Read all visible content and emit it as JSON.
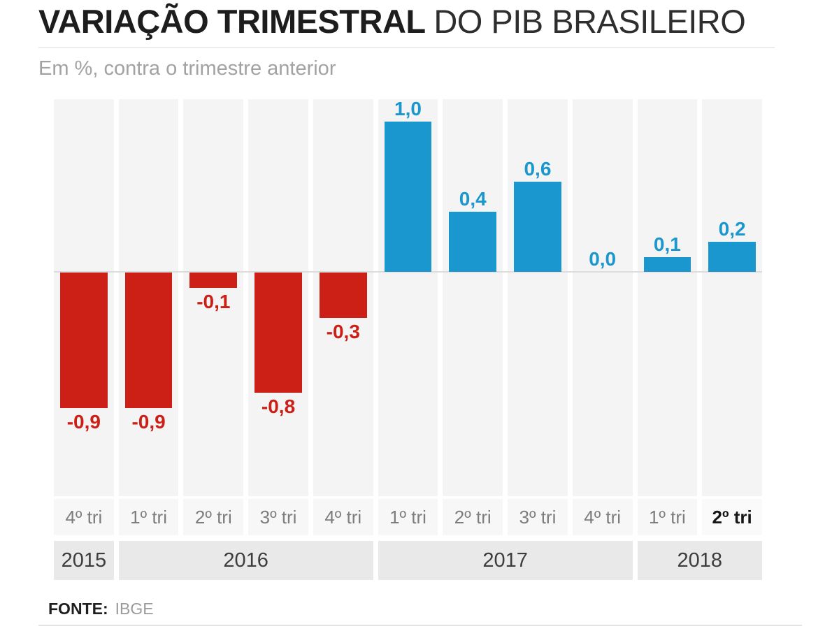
{
  "header": {
    "title_bold": "VARIAÇÃO TRIMESTRAL",
    "title_light": "DO PIB BRASILEIRO",
    "subtitle": "Em %, contra o trimestre anterior"
  },
  "chart_data": {
    "type": "bar",
    "title": "VARIAÇÃO TRIMESTRAL DO PIB BRASILEIRO",
    "subtitle": "Em %, contra o trimestre anterior",
    "unit": "%",
    "categories": [
      "4º tri",
      "1º tri",
      "2º tri",
      "3º tri",
      "4º tri",
      "1º tri",
      "2º tri",
      "3º tri",
      "4º tri",
      "1º tri",
      "2º tri"
    ],
    "values": [
      -0.9,
      -0.9,
      -0.1,
      -0.8,
      -0.3,
      1.0,
      0.4,
      0.6,
      0.0,
      0.1,
      0.2
    ],
    "value_labels": [
      "-0,9",
      "-0,9",
      "-0,1",
      "-0,8",
      "-0,3",
      "1,0",
      "0,4",
      "0,6",
      "0,0",
      "0,1",
      "0,2"
    ],
    "year_groups": [
      {
        "label": "2015",
        "span": 1
      },
      {
        "label": "2016",
        "span": 4
      },
      {
        "label": "2017",
        "span": 4
      },
      {
        "label": "2018",
        "span": 2
      }
    ],
    "colors": {
      "positive": "#1a97ce",
      "negative": "#cc2016",
      "column_stripe": "#f5f4f4",
      "year_band": "#e9e9e9",
      "zero_line": "#dcdcdc"
    },
    "ylim": [
      -1.1,
      1.2
    ],
    "grid": false,
    "legend": "none",
    "highlight_last_category": true
  },
  "footer": {
    "source_label": "FONTE:",
    "source_value": "IBGE"
  }
}
